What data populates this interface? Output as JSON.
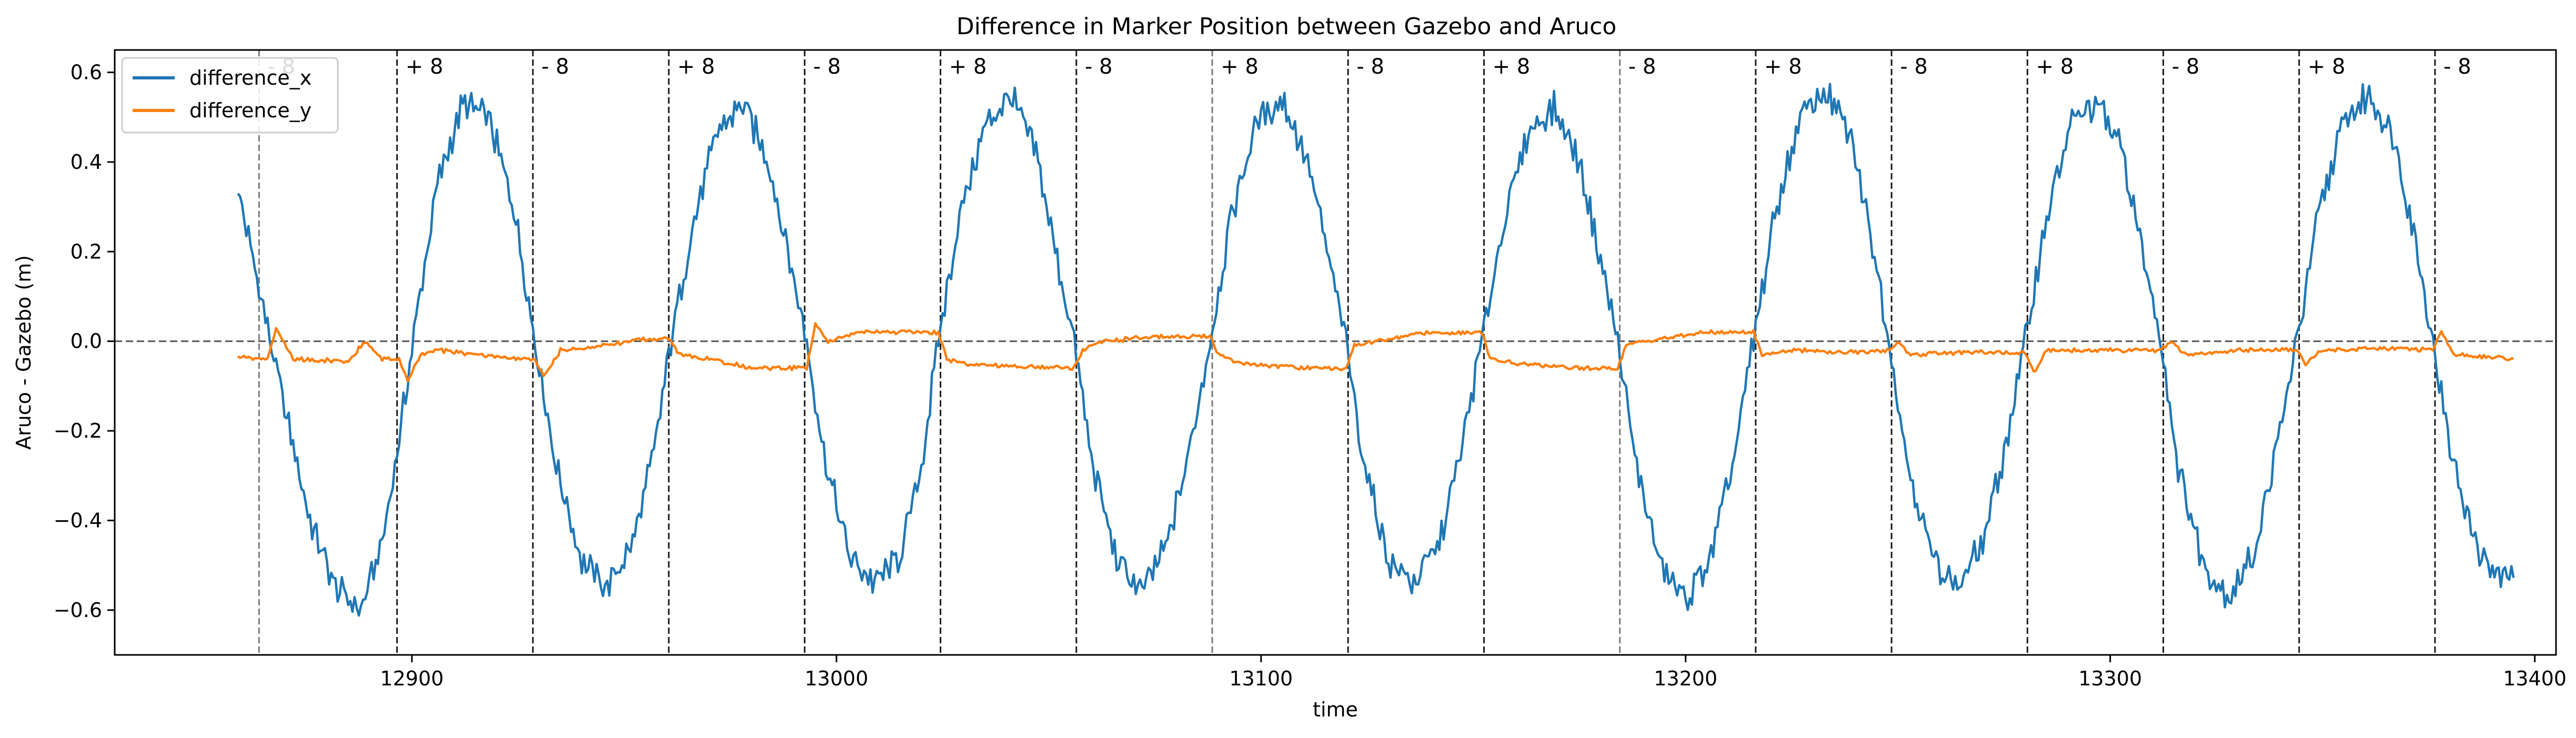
{
  "chart_data": {
    "type": "line",
    "title": "Difference in Marker Position between Gazebo and Aruco",
    "xlabel": "time",
    "ylabel": "Aruco - Gazebo (m)",
    "xlim": [
      12830,
      13405
    ],
    "ylim": [
      -0.7,
      0.65
    ],
    "xticks": [
      12900,
      13000,
      13100,
      13200,
      13300,
      13400
    ],
    "yticks": [
      -0.6,
      -0.4,
      -0.2,
      0.0,
      0.2,
      0.4,
      0.6
    ],
    "xtick_labels": [
      "12900",
      "13000",
      "13100",
      "13200",
      "13300",
      "13400"
    ],
    "ytick_labels": [
      "−0.6",
      "−0.4",
      "−0.2",
      "0.0",
      "0.2",
      "0.4",
      "0.6"
    ],
    "grid": false,
    "legend_position": "top-left",
    "zero_line": {
      "y": 0.0,
      "color": "#555555"
    },
    "series": [
      {
        "name": "difference_x",
        "color": "#1f77b4"
      },
      {
        "name": "difference_y",
        "color": "#ff7f0e"
      }
    ],
    "x_start": 12859,
    "x_end": 13395,
    "x_step": 1,
    "difference_x_anchors": [
      [
        12859,
        0.34
      ],
      [
        12864,
        0.12
      ],
      [
        12870,
        -0.15
      ],
      [
        12876,
        -0.4
      ],
      [
        12882,
        -0.55
      ],
      [
        12888,
        -0.6
      ],
      [
        12893,
        -0.45
      ],
      [
        12897,
        -0.22
      ],
      [
        12901,
        0.05
      ],
      [
        12906,
        0.35
      ],
      [
        12912,
        0.53
      ],
      [
        12918,
        0.5
      ],
      [
        12924,
        0.3
      ],
      [
        12929,
        0.0
      ],
      [
        12934,
        -0.28
      ],
      [
        12940,
        -0.49
      ],
      [
        12946,
        -0.55
      ],
      [
        12952,
        -0.45
      ],
      [
        12957,
        -0.25
      ],
      [
        12961,
        0.0
      ],
      [
        12966,
        0.25
      ],
      [
        12972,
        0.47
      ],
      [
        12978,
        0.53
      ],
      [
        12984,
        0.4
      ],
      [
        12989,
        0.18
      ],
      [
        12993,
        0.0
      ],
      [
        12997,
        -0.25
      ],
      [
        13003,
        -0.48
      ],
      [
        13009,
        -0.54
      ],
      [
        13015,
        -0.48
      ],
      [
        13020,
        -0.28
      ],
      [
        13024,
        0.0
      ],
      [
        13029,
        0.28
      ],
      [
        13035,
        0.48
      ],
      [
        13041,
        0.55
      ],
      [
        13047,
        0.42
      ],
      [
        13052,
        0.18
      ],
      [
        13056,
        0.0
      ],
      [
        13060,
        -0.26
      ],
      [
        13066,
        -0.49
      ],
      [
        13072,
        -0.56
      ],
      [
        13078,
        -0.45
      ],
      [
        13083,
        -0.25
      ],
      [
        13088,
        0.0
      ],
      [
        13093,
        0.28
      ],
      [
        13099,
        0.49
      ],
      [
        13105,
        0.54
      ],
      [
        13111,
        0.4
      ],
      [
        13116,
        0.18
      ],
      [
        13120,
        0.0
      ],
      [
        13124,
        -0.26
      ],
      [
        13130,
        -0.49
      ],
      [
        13136,
        -0.54
      ],
      [
        13142,
        -0.45
      ],
      [
        13147,
        -0.25
      ],
      [
        13152,
        0.0
      ],
      [
        13157,
        0.26
      ],
      [
        13163,
        0.47
      ],
      [
        13169,
        0.52
      ],
      [
        13175,
        0.4
      ],
      [
        13180,
        0.18
      ],
      [
        13184,
        0.0
      ],
      [
        13188,
        -0.26
      ],
      [
        13194,
        -0.5
      ],
      [
        13200,
        -0.58
      ],
      [
        13206,
        -0.48
      ],
      [
        13211,
        -0.28
      ],
      [
        13216,
        0.0
      ],
      [
        13221,
        0.28
      ],
      [
        13227,
        0.5
      ],
      [
        13233,
        0.56
      ],
      [
        13239,
        0.45
      ],
      [
        13244,
        0.22
      ],
      [
        13248,
        0.0
      ],
      [
        13252,
        -0.26
      ],
      [
        13258,
        -0.48
      ],
      [
        13264,
        -0.55
      ],
      [
        13270,
        -0.45
      ],
      [
        13275,
        -0.25
      ],
      [
        13280,
        0.0
      ],
      [
        13285,
        0.28
      ],
      [
        13291,
        0.49
      ],
      [
        13297,
        0.53
      ],
      [
        13303,
        0.42
      ],
      [
        13308,
        0.18
      ],
      [
        13312,
        0.0
      ],
      [
        13316,
        -0.28
      ],
      [
        13322,
        -0.5
      ],
      [
        13328,
        -0.57
      ],
      [
        13334,
        -0.47
      ],
      [
        13339,
        -0.25
      ],
      [
        13344,
        0.0
      ],
      [
        13349,
        0.28
      ],
      [
        13355,
        0.49
      ],
      [
        13361,
        0.55
      ],
      [
        13367,
        0.45
      ],
      [
        13372,
        0.22
      ],
      [
        13376,
        0.0
      ],
      [
        13380,
        -0.24
      ],
      [
        13386,
        -0.45
      ],
      [
        13391,
        -0.53
      ],
      [
        13395,
        -0.52
      ]
    ],
    "difference_y_anchors": [
      [
        12859,
        -0.035
      ],
      [
        12866,
        -0.04
      ],
      [
        12868,
        0.03
      ],
      [
        12872,
        -0.04
      ],
      [
        12885,
        -0.045
      ],
      [
        12889,
        0.0
      ],
      [
        12893,
        -0.04
      ],
      [
        12897,
        -0.04
      ],
      [
        12899,
        -0.09
      ],
      [
        12902,
        -0.03
      ],
      [
        12906,
        -0.02
      ],
      [
        12925,
        -0.04
      ],
      [
        12929,
        -0.04
      ],
      [
        12931,
        -0.08
      ],
      [
        12935,
        -0.02
      ],
      [
        12945,
        -0.01
      ],
      [
        12955,
        0.005
      ],
      [
        12961,
        0.005
      ],
      [
        12963,
        -0.03
      ],
      [
        12970,
        -0.04
      ],
      [
        12980,
        -0.06
      ],
      [
        12993,
        -0.06
      ],
      [
        12995,
        0.04
      ],
      [
        12998,
        0.0
      ],
      [
        13005,
        0.02
      ],
      [
        13024,
        0.02
      ],
      [
        13026,
        -0.04
      ],
      [
        13030,
        -0.05
      ],
      [
        13040,
        -0.055
      ],
      [
        13056,
        -0.06
      ],
      [
        13058,
        -0.02
      ],
      [
        13063,
        0.0
      ],
      [
        13075,
        0.01
      ],
      [
        13088,
        0.01
      ],
      [
        13090,
        -0.03
      ],
      [
        13095,
        -0.05
      ],
      [
        13110,
        -0.06
      ],
      [
        13120,
        -0.06
      ],
      [
        13122,
        -0.01
      ],
      [
        13127,
        0.0
      ],
      [
        13140,
        0.02
      ],
      [
        13152,
        0.02
      ],
      [
        13154,
        -0.04
      ],
      [
        13160,
        -0.05
      ],
      [
        13175,
        -0.06
      ],
      [
        13184,
        -0.06
      ],
      [
        13186,
        -0.01
      ],
      [
        13190,
        0.0
      ],
      [
        13205,
        0.02
      ],
      [
        13216,
        0.02
      ],
      [
        13218,
        -0.03
      ],
      [
        13225,
        -0.02
      ],
      [
        13240,
        -0.025
      ],
      [
        13248,
        -0.02
      ],
      [
        13250,
        0.0
      ],
      [
        13253,
        -0.03
      ],
      [
        13265,
        -0.025
      ],
      [
        13280,
        -0.025
      ],
      [
        13282,
        -0.07
      ],
      [
        13285,
        -0.02
      ],
      [
        13300,
        -0.02
      ],
      [
        13312,
        -0.02
      ],
      [
        13314,
        0.0
      ],
      [
        13318,
        -0.03
      ],
      [
        13330,
        -0.02
      ],
      [
        13344,
        -0.02
      ],
      [
        13346,
        -0.05
      ],
      [
        13350,
        -0.02
      ],
      [
        13365,
        -0.015
      ],
      [
        13376,
        -0.02
      ],
      [
        13378,
        0.02
      ],
      [
        13381,
        -0.03
      ],
      [
        13395,
        -0.04
      ]
    ],
    "vertical_lines": [
      {
        "x": 12864,
        "dark": false
      },
      {
        "x": 12896.5,
        "dark": true
      },
      {
        "x": 12928.5,
        "dark": true
      },
      {
        "x": 12960.5,
        "dark": true
      },
      {
        "x": 12992.5,
        "dark": true
      },
      {
        "x": 13024.5,
        "dark": true
      },
      {
        "x": 13056.5,
        "dark": true
      },
      {
        "x": 13088.5,
        "dark": false
      },
      {
        "x": 13120.5,
        "dark": true
      },
      {
        "x": 13152.5,
        "dark": true
      },
      {
        "x": 13184.5,
        "dark": false
      },
      {
        "x": 13216.5,
        "dark": true
      },
      {
        "x": 13248.5,
        "dark": true
      },
      {
        "x": 13280.5,
        "dark": true
      },
      {
        "x": 13312.5,
        "dark": true
      },
      {
        "x": 13344.5,
        "dark": true
      },
      {
        "x": 13376.5,
        "dark": true
      }
    ],
    "annotations": [
      {
        "x": 12866,
        "text": "- 8"
      },
      {
        "x": 12898.5,
        "text": "+ 8"
      },
      {
        "x": 12930.5,
        "text": "- 8"
      },
      {
        "x": 12962.5,
        "text": "+ 8"
      },
      {
        "x": 12994.5,
        "text": "- 8"
      },
      {
        "x": 13026.5,
        "text": "+ 8"
      },
      {
        "x": 13058.5,
        "text": "- 8"
      },
      {
        "x": 13090.5,
        "text": "+ 8"
      },
      {
        "x": 13122.5,
        "text": "- 8"
      },
      {
        "x": 13154.5,
        "text": "+ 8"
      },
      {
        "x": 13186.5,
        "text": "- 8"
      },
      {
        "x": 13218.5,
        "text": "+ 8"
      },
      {
        "x": 13250.5,
        "text": "- 8"
      },
      {
        "x": 13282.5,
        "text": "+ 8"
      },
      {
        "x": 13314.5,
        "text": "- 8"
      },
      {
        "x": 13346.5,
        "text": "+ 8"
      },
      {
        "x": 13378.5,
        "text": "- 8"
      }
    ]
  }
}
